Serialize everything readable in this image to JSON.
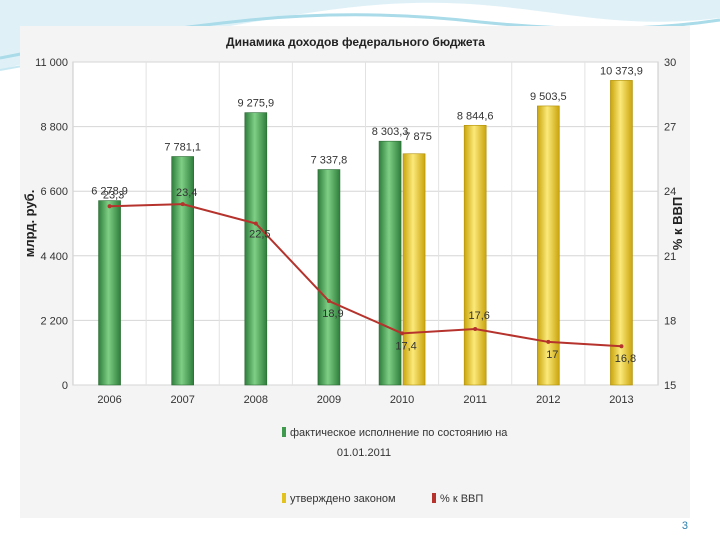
{
  "slide_number": "3",
  "chart_data": {
    "type": "bar",
    "title": "Динамика доходов федерального бюджета",
    "categories": [
      "2006",
      "2007",
      "2008",
      "2009",
      "2010",
      "2011",
      "2012",
      "2013"
    ],
    "series": [
      {
        "name": "фактическое исполнение по состоянию на 01.01.2011",
        "kind": "bar",
        "axis": "left",
        "color": "#3f9a4e",
        "values": [
          6278.9,
          7781.1,
          9275.9,
          7337.8,
          8303.3,
          null,
          null,
          null
        ],
        "labels": [
          "6 278,9",
          "7 781,1",
          "9 275,9",
          "7 337,8",
          "8 303,3",
          "",
          "",
          ""
        ]
      },
      {
        "name": "утверждено законом",
        "kind": "bar",
        "axis": "left",
        "color": "#e2c21e",
        "values": [
          null,
          null,
          null,
          null,
          7875,
          8844.6,
          9503.5,
          10373.9
        ],
        "labels": [
          "",
          "",
          "",
          "",
          "7 875",
          "8 844,6",
          "9 503,5",
          "10 373,9"
        ]
      },
      {
        "name": "% к ВВП",
        "kind": "line",
        "axis": "right",
        "color": "#b5332c",
        "values": [
          23.3,
          23.4,
          22.5,
          18.9,
          17.4,
          17.6,
          17,
          16.8
        ],
        "labels": [
          "23,3",
          "23,4",
          "22,5",
          "18,9",
          "17,4",
          "17,6",
          "17",
          "16,8"
        ]
      }
    ],
    "ylabel": "млрд. руб.",
    "ylim": [
      0,
      11000
    ],
    "yticks": [
      0,
      2200,
      4400,
      6600,
      8800,
      11000
    ],
    "ytick_labels": [
      "0",
      "2 200",
      "4 400",
      "6 600",
      "8 800",
      "11 000"
    ],
    "y2label": "% к ВВП",
    "y2lim": [
      15,
      30
    ],
    "y2ticks": [
      15,
      18,
      21,
      24,
      27,
      30
    ],
    "y2tick_labels": [
      "15",
      "18",
      "21",
      "24",
      "27",
      "30"
    ],
    "legend_position": "bottom",
    "grid": true
  }
}
